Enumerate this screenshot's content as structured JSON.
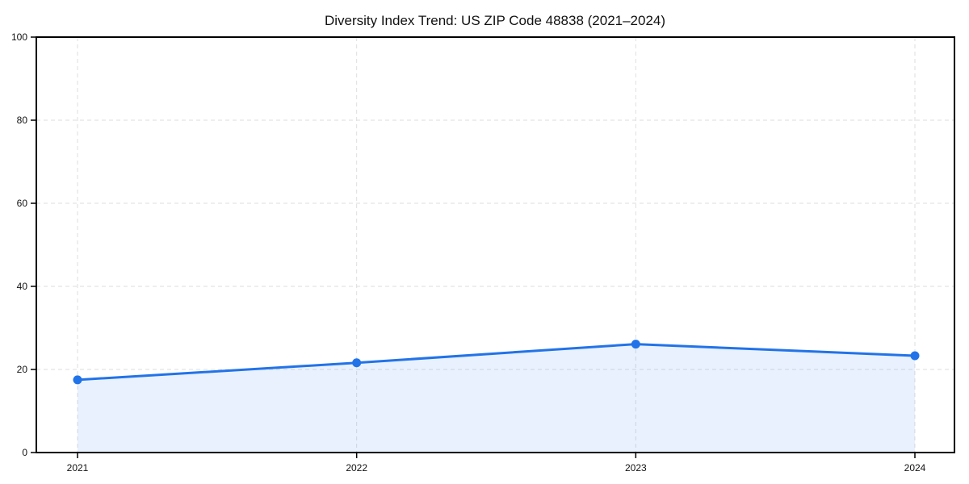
{
  "chart_data": {
    "type": "line",
    "title": "Diversity Index Trend: US ZIP Code 48838 (2021–2024)",
    "series_name": "Diversity Index",
    "x": [
      "2021",
      "2022",
      "2023",
      "2024"
    ],
    "values": [
      17.5,
      21.6,
      26.1,
      23.3
    ],
    "xlabel": "",
    "ylabel": "",
    "ylim": [
      0,
      100
    ],
    "yticks": [
      0,
      20,
      40,
      60,
      80,
      100
    ],
    "xtick_labels": [
      "2021",
      "2022",
      "2023",
      "2024"
    ],
    "grid": "dashed",
    "legend_position": "none",
    "marker": "circle",
    "area_fill": true,
    "colors": {
      "line": "#2273e8",
      "marker": "#2273e8",
      "area_fill": "rgba(34, 115, 232, 0.10)",
      "grid": "#dedede",
      "spine": "#000000",
      "text": "#111111",
      "background": "#ffffff"
    }
  }
}
